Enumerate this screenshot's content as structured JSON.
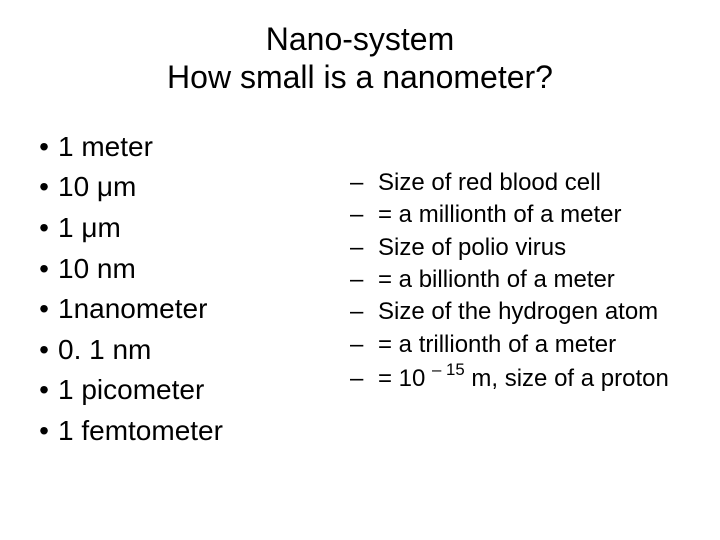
{
  "title": {
    "line1": "Nano-system",
    "line2": "How small is a nanometer?",
    "fontsize": 32,
    "color": "#000000"
  },
  "left_list": {
    "bullet_char": "•",
    "fontsize": 28,
    "color": "#000000",
    "items": [
      "1 meter",
      "10 μm",
      "1 μm",
      "10 nm",
      "1nanometer",
      "0. 1 nm",
      "1 picometer",
      "1 femtometer"
    ]
  },
  "right_list": {
    "dash_char": "–",
    "fontsize": 24,
    "color": "#000000",
    "items": [
      {
        "text": "Size of red blood cell"
      },
      {
        "text": "= a millionth of a meter"
      },
      {
        "text": "Size of polio virus"
      },
      {
        "text": "= a billionth of a meter"
      },
      {
        "text": "Size of the hydrogen atom"
      },
      {
        "text": "= a trillionth of a meter"
      },
      {
        "text_pre": "= 10 ",
        "sup": "– 15",
        "text_post": " m, size of a proton"
      }
    ]
  },
  "background_color": "#ffffff"
}
